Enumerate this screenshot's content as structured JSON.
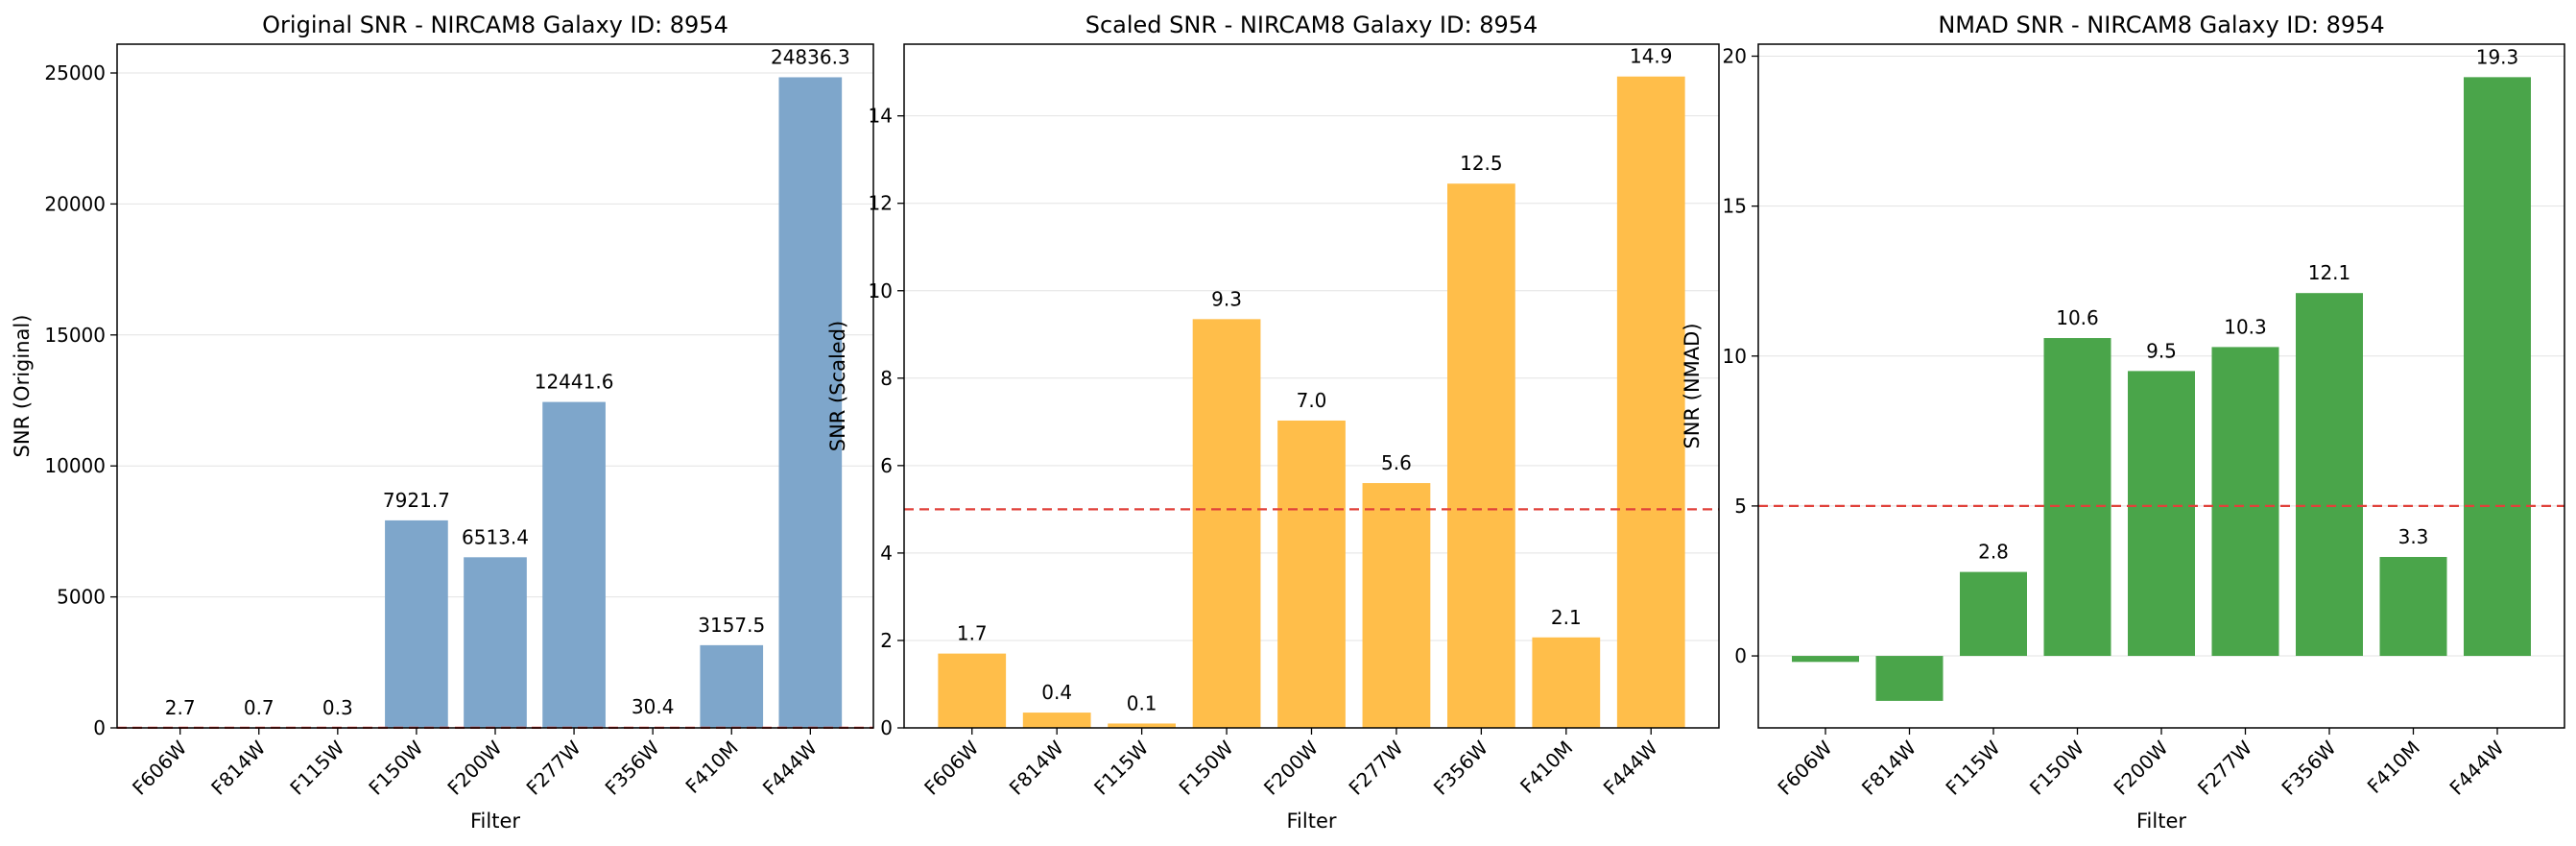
{
  "figure": {
    "threshold": 5,
    "charts": [
      {
        "type": "bar",
        "title": "Original SNR - NIRCAM8 Galaxy ID: 8954",
        "xlabel": "Filter",
        "ylabel": "SNR (Original)",
        "categories": [
          "F606W",
          "F814W",
          "F115W",
          "F150W",
          "F200W",
          "F277W",
          "F356W",
          "F410M",
          "F444W"
        ],
        "values": [
          2.7,
          0.7,
          0.3,
          7921.7,
          6513.4,
          12441.6,
          30.4,
          3157.5,
          24836.3
        ],
        "value_labels": [
          "2.7",
          "0.7",
          "0.3",
          "7921.7",
          "6513.4",
          "12441.6",
          "30.4",
          "3157.5",
          "24836.3"
        ],
        "ylim": [
          0,
          26100
        ],
        "yticks": [
          0,
          5000,
          10000,
          15000,
          20000,
          25000
        ],
        "color": "#7ea6cb",
        "grid": "y",
        "threshold_line": 5,
        "threshold_color": "#e0413a"
      },
      {
        "type": "bar",
        "title": "Scaled SNR - NIRCAM8 Galaxy ID: 8954",
        "xlabel": "Filter",
        "ylabel": "SNR (Scaled)",
        "categories": [
          "F606W",
          "F814W",
          "F115W",
          "F150W",
          "F200W",
          "F277W",
          "F356W",
          "F410M",
          "F444W"
        ],
        "values": [
          1.7,
          0.35,
          0.1,
          9.35,
          7.03,
          5.6,
          12.45,
          2.07,
          14.9
        ],
        "value_labels": [
          "1.7",
          "0.4",
          "0.1",
          "9.3",
          "7.0",
          "5.6",
          "12.5",
          "2.1",
          "14.9"
        ],
        "ylim": [
          0,
          15.64
        ],
        "yticks": [
          0,
          2,
          4,
          6,
          8,
          10,
          12,
          14
        ],
        "color": "#ffbe4a",
        "grid": "y",
        "threshold_line": 5,
        "threshold_color": "#e0413a"
      },
      {
        "type": "bar",
        "title": "NMAD SNR - NIRCAM8 Galaxy ID: 8954",
        "xlabel": "Filter",
        "ylabel": "SNR (NMAD)",
        "categories": [
          "F606W",
          "F814W",
          "F115W",
          "F150W",
          "F200W",
          "F277W",
          "F356W",
          "F410M",
          "F444W"
        ],
        "values": [
          -0.2,
          -1.5,
          2.8,
          10.6,
          9.5,
          10.3,
          12.1,
          3.3,
          19.3
        ],
        "value_labels": [
          "",
          "",
          "2.8",
          "10.6",
          "9.5",
          "10.3",
          "12.1",
          "3.3",
          "19.3"
        ],
        "ylim": [
          -2.4,
          20.4
        ],
        "yticks": [
          0,
          5,
          10,
          15,
          20
        ],
        "color": "#4aa54a",
        "grid": "y",
        "threshold_line": 5,
        "threshold_color": "#e0413a"
      }
    ]
  }
}
